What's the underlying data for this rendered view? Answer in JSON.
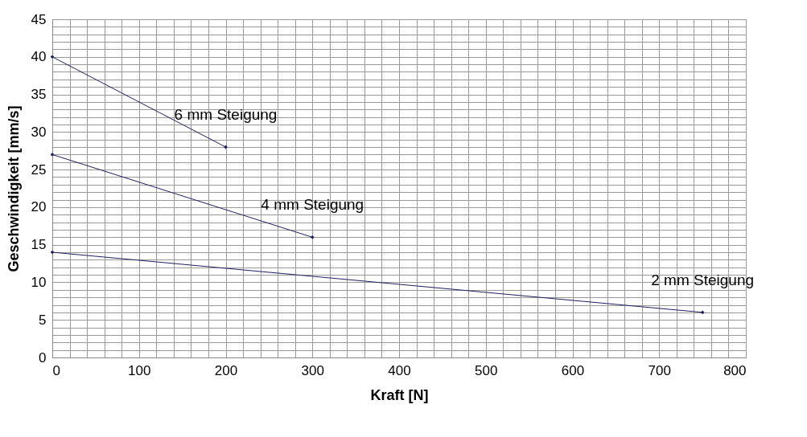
{
  "chart_data": {
    "type": "line",
    "xlabel": "Kraft [N]",
    "ylabel": "Geschwindigkeit [mm/s]",
    "xlim": [
      0,
      800
    ],
    "xticks": [
      0,
      100,
      200,
      300,
      400,
      500,
      600,
      700,
      800
    ],
    "ylim": [
      0,
      45
    ],
    "yticks": [
      0,
      5,
      10,
      15,
      20,
      25,
      30,
      35,
      40,
      45
    ],
    "grid": true,
    "marker": "diamond",
    "line_style": "solid",
    "legend": false,
    "series": [
      {
        "name": "6 mm Steigung",
        "color": "#1f2060",
        "x": [
          0,
          200
        ],
        "values": [
          40,
          28
        ]
      },
      {
        "name": "4 mm Steigung",
        "color": "#1f2060",
        "x": [
          0,
          300
        ],
        "values": [
          27,
          16
        ]
      },
      {
        "name": "2 mm Steigung",
        "color": "#1f2060",
        "x": [
          0,
          750
        ],
        "values": [
          14,
          6
        ]
      }
    ]
  }
}
